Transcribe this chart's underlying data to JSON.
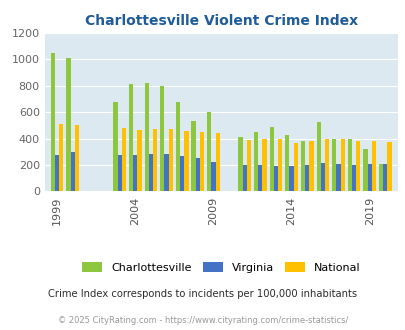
{
  "title": "Charlottesville Violent Crime Index",
  "years": [
    1999,
    2000,
    2001,
    2002,
    2003,
    2004,
    2005,
    2006,
    2007,
    2008,
    2009,
    2010,
    2011,
    2012,
    2013,
    2014,
    2015,
    2016,
    2017,
    2018,
    2019,
    2020
  ],
  "charlottesville": [
    1050,
    1010,
    0,
    0,
    680,
    810,
    825,
    795,
    680,
    535,
    598,
    0,
    415,
    450,
    490,
    425,
    385,
    525,
    395,
    400,
    325,
    210
  ],
  "virginia": [
    275,
    298,
    0,
    0,
    275,
    275,
    285,
    285,
    270,
    252,
    225,
    0,
    200,
    200,
    193,
    195,
    200,
    215,
    210,
    202,
    205,
    210
  ],
  "national": [
    510,
    500,
    0,
    0,
    480,
    462,
    472,
    470,
    460,
    452,
    445,
    0,
    390,
    395,
    395,
    370,
    380,
    395,
    395,
    385,
    380,
    375
  ],
  "xtick_years": [
    1999,
    2004,
    2009,
    2014,
    2019
  ],
  "ylim": [
    0,
    1200
  ],
  "yticks": [
    0,
    200,
    400,
    600,
    800,
    1000,
    1200
  ],
  "color_charlottesville": "#8dc63f",
  "color_virginia": "#4472c4",
  "color_national": "#ffc000",
  "background_color": "#dce9f0",
  "plot_bg": "#dce9f0",
  "title_color": "#1f5c99",
  "subtitle_color": "#2c2c2c",
  "footer_color": "#999999",
  "bar_width": 0.27,
  "subtitle": "Crime Index corresponds to incidents per 100,000 inhabitants",
  "footer": "© 2025 CityRating.com - https://www.cityrating.com/crime-statistics/"
}
